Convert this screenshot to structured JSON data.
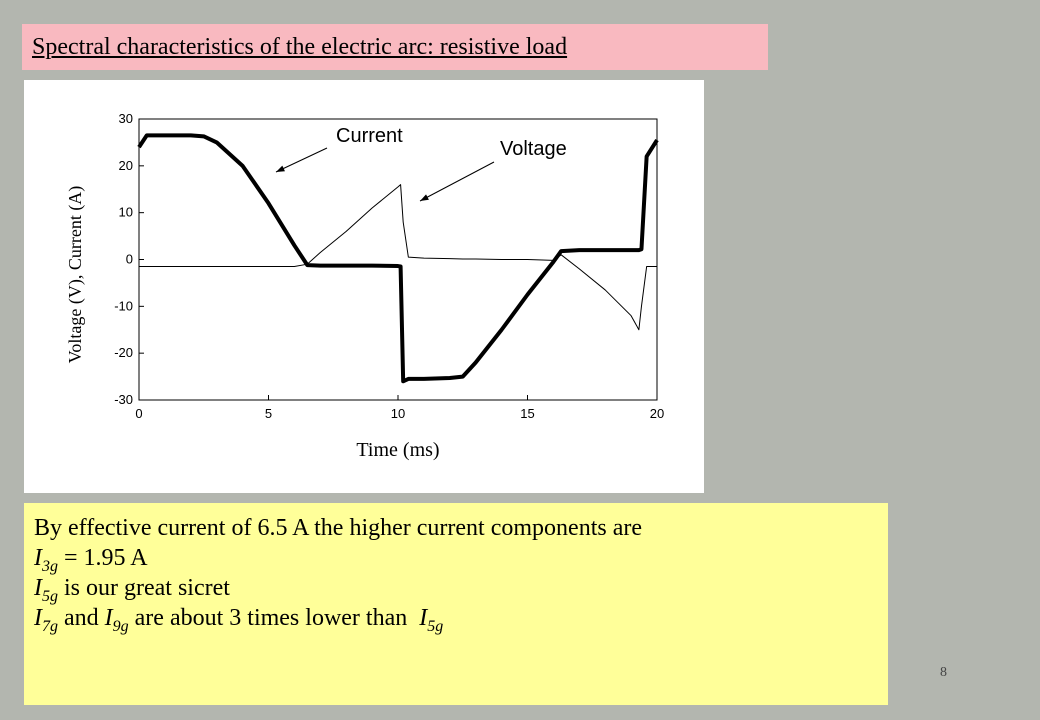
{
  "title": "Spectral characteristics of the electric arc: resistive load",
  "chart_data": {
    "type": "line",
    "x_label": "Time (ms)",
    "y_label": "Voltage (V), Current (A)",
    "annotations": [
      "Current",
      "Voltage"
    ],
    "x": [
      0,
      0.3,
      1,
      2,
      2.5,
      3,
      4,
      5,
      6,
      6.5,
      7,
      8,
      9,
      10,
      10.1,
      10.2,
      10.4,
      11,
      12,
      12.5,
      13,
      14,
      15,
      16,
      16.3,
      17,
      18,
      19,
      19.3,
      19.4,
      19.6,
      20
    ],
    "series": [
      {
        "name": "Current",
        "color": "#000000",
        "values": [
          24,
          26.5,
          26.5,
          26.5,
          26.3,
          25,
          20,
          12,
          3,
          -1.2,
          -1.3,
          -1.3,
          -1.3,
          -1.4,
          -1.5,
          -26,
          -25.5,
          -25.5,
          -25.3,
          -25,
          -22,
          -15,
          -7.5,
          -0.5,
          1.8,
          2,
          2,
          2,
          2,
          2.2,
          22,
          25.5
        ]
      },
      {
        "name": "Voltage",
        "color": "#000000",
        "values": [
          -1.5,
          -1.5,
          -1.5,
          -1.5,
          -1.5,
          -1.5,
          -1.5,
          -1.5,
          -1.5,
          -1,
          1.5,
          6,
          11,
          15.5,
          16,
          8,
          0.5,
          0.3,
          0.2,
          0.1,
          0.1,
          0,
          0,
          -0.2,
          1,
          -2,
          -6.5,
          -12,
          -15,
          -10,
          -1.5,
          -1.5
        ]
      }
    ],
    "xlim": [
      0,
      20
    ],
    "xticks": [
      0,
      5,
      10,
      15,
      20
    ],
    "ylim": [
      -30,
      30
    ],
    "yticks": [
      -30,
      -20,
      -10,
      0,
      10,
      20,
      30
    ]
  },
  "text_box": {
    "lines": [
      [
        {
          "text": "By effective current of 6.5 A the higher current components are"
        }
      ],
      [
        {
          "text": "I",
          "sub": "3g"
        },
        {
          "text": " = 1.95 A"
        }
      ],
      [
        {
          "text": "I",
          "sub": "5g"
        },
        {
          "text": " is our great sicret"
        }
      ],
      [
        {
          "text": "I",
          "sub": "7g"
        },
        {
          "text": " and "
        },
        {
          "text": "I",
          "sub": "9g"
        },
        {
          "text": " are about 3 times lower than  "
        },
        {
          "text": "I",
          "sub": "5g"
        }
      ]
    ]
  },
  "page_number": "8"
}
